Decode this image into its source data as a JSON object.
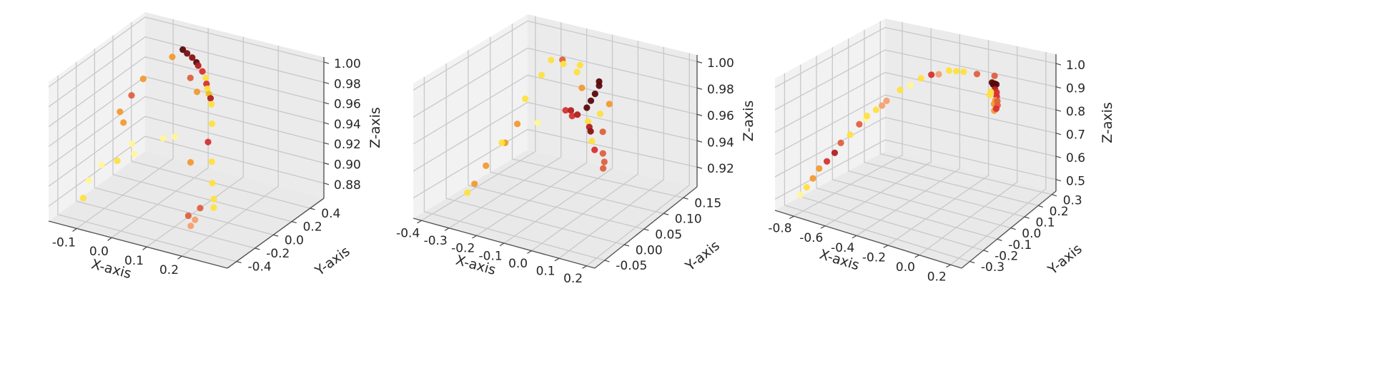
{
  "chart_data": [
    {
      "type": "scatter",
      "xlabel": "X-axis",
      "ylabel": "Y-axis",
      "zlabel": "Z-axis",
      "grid": true,
      "xlim": [
        -0.18,
        0.33
      ],
      "ylim": [
        -0.5,
        0.55
      ],
      "zlim": [
        0.865,
        1.005
      ],
      "x_ticks": [
        "-0.1",
        "0.0",
        "0.1",
        "0.2"
      ],
      "y_ticks": [
        "-0.4",
        "-0.2",
        "0.0",
        "0.2",
        "0.4"
      ],
      "z_ticks": [
        "0.88",
        "0.90",
        "0.92",
        "0.94",
        "0.96",
        "0.98",
        "1.00"
      ],
      "x_tick_values": [
        -0.1,
        0.0,
        0.1,
        0.2
      ],
      "y_tick_values": [
        -0.4,
        -0.2,
        0.0,
        0.2,
        0.4
      ],
      "z_tick_values": [
        0.88,
        0.9,
        0.92,
        0.94,
        0.96,
        0.98,
        1.0
      ],
      "points": [
        [
          -0.02,
          0.35,
          0.995,
          "#5a0a0a"
        ],
        [
          0.0,
          0.32,
          0.995,
          "#7a1010"
        ],
        [
          0.02,
          0.3,
          0.994,
          "#8b1212"
        ],
        [
          0.04,
          0.27,
          0.993,
          "#5a0a0a"
        ],
        [
          0.05,
          0.25,
          0.992,
          "#b22020"
        ],
        [
          0.07,
          0.22,
          0.99,
          "#d93030"
        ],
        [
          0.09,
          0.18,
          0.988,
          "#ffe040"
        ],
        [
          0.1,
          0.15,
          0.985,
          "#d93030"
        ],
        [
          0.11,
          0.12,
          0.983,
          "#ffe040"
        ],
        [
          0.12,
          0.1,
          0.98,
          "#e8c020"
        ],
        [
          0.13,
          0.08,
          0.978,
          "#b22020"
        ],
        [
          0.14,
          0.05,
          0.975,
          "#ffe040"
        ],
        [
          0.06,
          0.2,
          0.97,
          "#f29a30"
        ],
        [
          0.02,
          0.28,
          0.975,
          "#e06040"
        ],
        [
          0.16,
          -0.02,
          0.962,
          "#ffe040"
        ],
        [
          0.17,
          -0.1,
          0.95,
          "#d93030"
        ],
        [
          0.22,
          -0.25,
          0.945,
          "#ffe040"
        ],
        [
          0.24,
          -0.32,
          0.93,
          "#ffe040"
        ],
        [
          0.26,
          -0.38,
          0.92,
          "#ffe040"
        ],
        [
          0.27,
          -0.42,
          0.915,
          "#ffe040"
        ],
        [
          0.2,
          -0.3,
          0.9,
          "#e06040"
        ],
        [
          0.18,
          -0.28,
          0.885,
          "#f4a070"
        ],
        [
          0.16,
          -0.25,
          0.875,
          "#f4a070"
        ],
        [
          0.14,
          -0.2,
          0.88,
          "#e06040"
        ],
        [
          0.12,
          -0.1,
          0.925,
          "#f29a30"
        ],
        [
          -0.05,
          0.35,
          0.985,
          "#f29a30"
        ],
        [
          -0.12,
          0.3,
          0.96,
          "#f29a30"
        ],
        [
          -0.14,
          0.25,
          0.945,
          "#e06040"
        ],
        [
          -0.16,
          0.2,
          0.93,
          "#f29a30"
        ],
        [
          -0.15,
          0.2,
          0.92,
          "#f29a30"
        ],
        [
          -0.1,
          0.1,
          0.91,
          "#fff59a"
        ],
        [
          -0.08,
          0.05,
          0.905,
          "#fff59a"
        ],
        [
          -0.11,
          -0.02,
          0.9,
          "#ffe040"
        ],
        [
          -0.16,
          0.0,
          0.89,
          "#fff59a"
        ],
        [
          -0.05,
          0.25,
          0.91,
          "#fff59a"
        ],
        [
          -0.03,
          0.3,
          0.91,
          "#fff59a"
        ],
        [
          -0.17,
          -0.1,
          0.88,
          "#fff59a"
        ],
        [
          -0.16,
          -0.2,
          0.87,
          "#ffe040"
        ]
      ]
    },
    {
      "type": "scatter",
      "xlabel": "X-axis",
      "ylabel": "Y-axis",
      "zlabel": "Z-axis",
      "grid": true,
      "xlim": [
        -0.43,
        0.23
      ],
      "ylim": [
        -0.075,
        0.185
      ],
      "zlim": [
        0.905,
        1.005
      ],
      "x_ticks": [
        "-0.4",
        "-0.3",
        "-0.2",
        "-0.1",
        "0.0",
        "0.1",
        "0.2"
      ],
      "y_ticks": [
        "-0.05",
        "0.00",
        "0.05",
        "0.10",
        "0.15"
      ],
      "z_ticks": [
        "0.92",
        "0.94",
        "0.96",
        "0.98",
        "1.00"
      ],
      "x_tick_values": [
        -0.4,
        -0.3,
        -0.2,
        -0.1,
        0.0,
        0.1,
        0.2
      ],
      "y_tick_values": [
        -0.05,
        0.0,
        0.05,
        0.1,
        0.15
      ],
      "z_tick_values": [
        0.92,
        0.94,
        0.96,
        0.98,
        1.0
      ],
      "points": [
        [
          0.0,
          0.09,
          0.995,
          "#5a0a0a"
        ],
        [
          0.0,
          0.09,
          0.992,
          "#5a0a0a"
        ],
        [
          0.0,
          0.08,
          0.988,
          "#5a0a0a"
        ],
        [
          0.0,
          0.07,
          0.985,
          "#5a0a0a"
        ],
        [
          0.0,
          0.06,
          0.982,
          "#5a0a0a"
        ],
        [
          -0.02,
          0.05,
          0.978,
          "#b22020"
        ],
        [
          0.02,
          0.05,
          0.975,
          "#ffe040"
        ],
        [
          0.04,
          0.04,
          0.974,
          "#b22020"
        ],
        [
          -0.04,
          0.05,
          0.976,
          "#d93030"
        ],
        [
          -0.06,
          0.06,
          0.977,
          "#b22020"
        ],
        [
          -0.08,
          0.06,
          0.976,
          "#d93030"
        ],
        [
          0.06,
          0.03,
          0.974,
          "#8b1212"
        ],
        [
          0.1,
          0.05,
          0.992,
          "#f29a30"
        ],
        [
          0.15,
          0.0,
          0.985,
          "#e06040"
        ],
        [
          0.18,
          -0.02,
          0.975,
          "#e06040"
        ],
        [
          0.2,
          -0.03,
          0.972,
          "#e06040"
        ],
        [
          0.21,
          -0.04,
          0.97,
          "#e06040"
        ],
        [
          0.12,
          0.0,
          0.97,
          "#d93030"
        ],
        [
          0.08,
          0.02,
          0.97,
          "#ffe040"
        ],
        [
          -0.1,
          0.1,
          0.995,
          "#ffe040"
        ],
        [
          -0.12,
          0.12,
          0.995,
          "#ffe040"
        ],
        [
          -0.2,
          0.13,
          0.99,
          "#ffe040"
        ],
        [
          -0.22,
          0.14,
          0.99,
          "#e06040"
        ],
        [
          -0.28,
          0.15,
          0.985,
          "#ffe040"
        ],
        [
          -0.3,
          0.14,
          0.975,
          "#ffe040"
        ],
        [
          -0.33,
          0.12,
          0.96,
          "#ffe040"
        ],
        [
          -0.36,
          0.12,
          0.94,
          "#f29a30"
        ],
        [
          -0.34,
          0.08,
          0.935,
          "#f29a30"
        ],
        [
          -0.32,
          0.06,
          0.94,
          "#ffe040"
        ],
        [
          -0.38,
          0.06,
          0.92,
          "#f29a30"
        ],
        [
          -0.39,
          0.04,
          0.91,
          "#f29a30"
        ],
        [
          -0.4,
          0.03,
          0.905,
          "#ffe040"
        ],
        [
          -0.25,
          0.1,
          0.95,
          "#fff59a"
        ],
        [
          -0.05,
          0.08,
          0.99,
          "#f29a30"
        ],
        [
          0.05,
          0.06,
          0.98,
          "#ffe040"
        ]
      ]
    },
    {
      "type": "scatter",
      "xlabel": "X-axis",
      "ylabel": "Y-axis",
      "zlabel": "Z-axis",
      "grid": true,
      "xlim": [
        -0.92,
        0.27
      ],
      "ylim": [
        -0.36,
        0.33
      ],
      "zlim": [
        0.45,
        1.04
      ],
      "x_ticks": [
        "-0.8",
        "-0.6",
        "-0.4",
        "-0.2",
        "0.0",
        "0.2"
      ],
      "y_ticks": [
        "-0.3",
        "-0.2",
        "-0.1",
        "0.0",
        "0.1",
        "0.2",
        "0.3"
      ],
      "z_ticks": [
        "0.5",
        "0.6",
        "0.7",
        "0.8",
        "0.9",
        "1.0"
      ],
      "x_tick_values": [
        -0.8,
        -0.6,
        -0.4,
        -0.2,
        0.0,
        0.2
      ],
      "y_tick_values": [
        -0.3,
        -0.2,
        -0.1,
        0.0,
        0.1,
        0.2,
        0.3
      ],
      "z_tick_values": [
        0.5,
        0.6,
        0.7,
        0.8,
        0.9,
        1.0
      ],
      "points": [
        [
          0.05,
          0.1,
          1.0,
          "#5a0a0a"
        ],
        [
          0.06,
          0.1,
          0.995,
          "#5a0a0a"
        ],
        [
          0.07,
          0.11,
          0.99,
          "#5a0a0a"
        ],
        [
          0.05,
          0.12,
          0.985,
          "#5a0a0a"
        ],
        [
          0.04,
          0.12,
          0.98,
          "#5a0a0a"
        ],
        [
          0.08,
          0.09,
          0.98,
          "#b22020"
        ],
        [
          0.1,
          0.08,
          0.975,
          "#d93030"
        ],
        [
          0.12,
          0.06,
          0.97,
          "#d93030"
        ],
        [
          0.13,
          0.04,
          0.965,
          "#f29a30"
        ],
        [
          0.14,
          0.02,
          0.96,
          "#f29a30"
        ],
        [
          0.15,
          0.03,
          0.95,
          "#f29a30"
        ],
        [
          0.16,
          0.0,
          0.945,
          "#f29a30"
        ],
        [
          0.18,
          0.0,
          0.99,
          "#e06040"
        ],
        [
          0.2,
          -0.02,
          0.985,
          "#e06040"
        ],
        [
          0.2,
          -0.03,
          0.975,
          "#d93030"
        ],
        [
          0.02,
          0.15,
          1.0,
          "#e06040"
        ],
        [
          0.09,
          0.05,
          0.99,
          "#ffe040"
        ],
        [
          0.11,
          0.02,
          0.995,
          "#ffe040"
        ],
        [
          -0.1,
          0.15,
          0.99,
          "#e06040"
        ],
        [
          -0.2,
          0.16,
          0.98,
          "#ffe040"
        ],
        [
          -0.3,
          0.16,
          0.97,
          "#ffe040"
        ],
        [
          -0.35,
          0.14,
          0.955,
          "#f4a070"
        ],
        [
          -0.4,
          0.14,
          0.945,
          "#d93030"
        ],
        [
          -0.45,
          0.12,
          0.93,
          "#ffe040"
        ],
        [
          -0.55,
          0.08,
          0.88,
          "#ffe040"
        ],
        [
          -0.6,
          0.04,
          0.84,
          "#f4a070"
        ],
        [
          -0.65,
          0.02,
          0.8,
          "#ffe040"
        ],
        [
          -0.7,
          0.0,
          0.76,
          "#fff59a"
        ],
        [
          -0.72,
          -0.02,
          0.74,
          "#e06040"
        ],
        [
          -0.75,
          -0.05,
          0.7,
          "#ffe040"
        ],
        [
          -0.78,
          -0.08,
          0.67,
          "#e06040"
        ],
        [
          -0.8,
          -0.1,
          0.63,
          "#b22020"
        ],
        [
          -0.82,
          -0.13,
          0.6,
          "#d93030"
        ],
        [
          -0.85,
          -0.15,
          0.57,
          "#f29a30"
        ],
        [
          -0.87,
          -0.17,
          0.53,
          "#f29a30"
        ],
        [
          -0.88,
          -0.2,
          0.5,
          "#ffe040"
        ],
        [
          -0.9,
          -0.22,
          0.47,
          "#fff59a"
        ],
        [
          -0.68,
          -0.01,
          0.78,
          "#ffe040"
        ],
        [
          -0.62,
          0.03,
          0.82,
          "#f4a070"
        ],
        [
          -0.5,
          0.1,
          0.9,
          "#fff59a"
        ],
        [
          -0.25,
          0.16,
          0.975,
          "#ffe040"
        ]
      ]
    }
  ]
}
